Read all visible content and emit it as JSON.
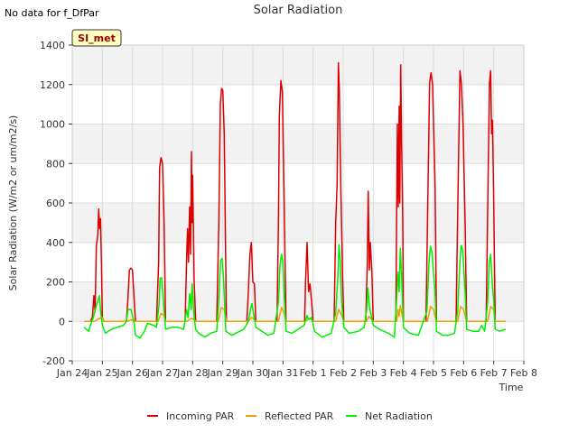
{
  "no_data_text": "No data for f_DfPar",
  "station_badge": "SI_met",
  "chart_data": {
    "type": "line",
    "title": "Solar Radiation",
    "xlabel": "Time",
    "ylabel": "Solar Radiation (W/m2 or um/m2/s)",
    "ylim": [
      -200,
      1400
    ],
    "yticks": [
      -200,
      0,
      200,
      400,
      600,
      800,
      1000,
      1200,
      1400
    ],
    "xlim": [
      0,
      15
    ],
    "xticks": [
      0,
      1,
      2,
      3,
      4,
      5,
      6,
      7,
      8,
      9,
      10,
      11,
      12,
      13,
      14,
      15
    ],
    "xtick_labels": [
      "Jan 24",
      "Jan 25",
      "Jan 26",
      "Jan 27",
      "Jan 28",
      "Jan 29",
      "Jan 30",
      "Jan 31",
      "Feb 1",
      "Feb 2",
      "Feb 3",
      "Feb 4",
      "Feb 5",
      "Feb 6",
      "Feb 7",
      "Feb 8"
    ],
    "grid": true,
    "legend_position": "bottom",
    "series": [
      {
        "name": "Incoming PAR",
        "color": "#dd0000",
        "points": [
          [
            0.4,
            0
          ],
          [
            0.6,
            0
          ],
          [
            0.67,
            20
          ],
          [
            0.72,
            130
          ],
          [
            0.76,
            50
          ],
          [
            0.8,
            380
          ],
          [
            0.85,
            440
          ],
          [
            0.88,
            570
          ],
          [
            0.91,
            470
          ],
          [
            0.94,
            520
          ],
          [
            0.97,
            300
          ],
          [
            1.0,
            20
          ],
          [
            1.05,
            0
          ],
          [
            1.8,
            0
          ],
          [
            1.85,
            120
          ],
          [
            1.9,
            260
          ],
          [
            1.95,
            270
          ],
          [
            2.0,
            260
          ],
          [
            2.05,
            130
          ],
          [
            2.1,
            0
          ],
          [
            2.8,
            0
          ],
          [
            2.87,
            300
          ],
          [
            2.9,
            780
          ],
          [
            2.95,
            830
          ],
          [
            3.0,
            800
          ],
          [
            3.05,
            500
          ],
          [
            3.1,
            0
          ],
          [
            3.75,
            0
          ],
          [
            3.8,
            330
          ],
          [
            3.83,
            470
          ],
          [
            3.86,
            300
          ],
          [
            3.9,
            580
          ],
          [
            3.93,
            340
          ],
          [
            3.96,
            860
          ],
          [
            3.98,
            500
          ],
          [
            4.0,
            740
          ],
          [
            4.05,
            200
          ],
          [
            4.1,
            0
          ],
          [
            4.8,
            0
          ],
          [
            4.87,
            500
          ],
          [
            4.92,
            1100
          ],
          [
            4.96,
            1180
          ],
          [
            5.0,
            1170
          ],
          [
            5.05,
            950
          ],
          [
            5.12,
            0
          ],
          [
            5.8,
            0
          ],
          [
            5.85,
            150
          ],
          [
            5.9,
            340
          ],
          [
            5.95,
            400
          ],
          [
            6.0,
            200
          ],
          [
            6.05,
            190
          ],
          [
            6.1,
            0
          ],
          [
            6.8,
            0
          ],
          [
            6.85,
            500
          ],
          [
            6.88,
            1040
          ],
          [
            6.93,
            1220
          ],
          [
            6.98,
            1160
          ],
          [
            7.03,
            700
          ],
          [
            7.1,
            0
          ],
          [
            7.72,
            0
          ],
          [
            7.75,
            200
          ],
          [
            7.8,
            400
          ],
          [
            7.85,
            150
          ],
          [
            7.9,
            190
          ],
          [
            7.95,
            100
          ],
          [
            8.0,
            0
          ],
          [
            8.7,
            0
          ],
          [
            8.75,
            500
          ],
          [
            8.8,
            700
          ],
          [
            8.84,
            1310
          ],
          [
            8.87,
            1180
          ],
          [
            8.92,
            700
          ],
          [
            8.98,
            240
          ],
          [
            9.02,
            0
          ],
          [
            9.75,
            0
          ],
          [
            9.8,
            300
          ],
          [
            9.83,
            660
          ],
          [
            9.87,
            260
          ],
          [
            9.9,
            400
          ],
          [
            9.95,
            260
          ],
          [
            10.0,
            0
          ],
          [
            10.75,
            0
          ],
          [
            10.78,
            600
          ],
          [
            10.8,
            1000
          ],
          [
            10.83,
            580
          ],
          [
            10.86,
            1090
          ],
          [
            10.88,
            600
          ],
          [
            10.91,
            1300
          ],
          [
            10.94,
            900
          ],
          [
            10.98,
            500
          ],
          [
            11.0,
            0
          ],
          [
            11.75,
            0
          ],
          [
            11.82,
            700
          ],
          [
            11.87,
            1210
          ],
          [
            11.92,
            1260
          ],
          [
            11.97,
            1200
          ],
          [
            12.05,
            700
          ],
          [
            12.1,
            0
          ],
          [
            12.75,
            0
          ],
          [
            12.82,
            700
          ],
          [
            12.88,
            1270
          ],
          [
            12.93,
            1200
          ],
          [
            12.98,
            1000
          ],
          [
            13.05,
            500
          ],
          [
            13.1,
            0
          ],
          [
            13.75,
            0
          ],
          [
            13.82,
            800
          ],
          [
            13.86,
            1210
          ],
          [
            13.9,
            1270
          ],
          [
            13.93,
            950
          ],
          [
            13.96,
            1020
          ],
          [
            14.0,
            600
          ],
          [
            14.05,
            0
          ],
          [
            14.4,
            0
          ]
        ]
      },
      {
        "name": "Reflected PAR",
        "color": "#f0a000",
        "points": [
          [
            0.4,
            0
          ],
          [
            0.75,
            0
          ],
          [
            0.9,
            15
          ],
          [
            1.0,
            20
          ],
          [
            1.05,
            0
          ],
          [
            1.85,
            0
          ],
          [
            1.95,
            10
          ],
          [
            2.05,
            0
          ],
          [
            2.85,
            0
          ],
          [
            2.95,
            40
          ],
          [
            3.05,
            30
          ],
          [
            3.1,
            0
          ],
          [
            3.8,
            0
          ],
          [
            3.95,
            15
          ],
          [
            4.05,
            10
          ],
          [
            4.1,
            0
          ],
          [
            4.85,
            0
          ],
          [
            4.95,
            70
          ],
          [
            5.05,
            60
          ],
          [
            5.12,
            0
          ],
          [
            5.85,
            0
          ],
          [
            5.95,
            20
          ],
          [
            6.05,
            10
          ],
          [
            6.1,
            0
          ],
          [
            6.85,
            0
          ],
          [
            6.95,
            70
          ],
          [
            7.05,
            40
          ],
          [
            7.1,
            0
          ],
          [
            7.75,
            0
          ],
          [
            7.85,
            15
          ],
          [
            7.95,
            10
          ],
          [
            8.0,
            0
          ],
          [
            8.75,
            0
          ],
          [
            8.85,
            60
          ],
          [
            8.95,
            30
          ],
          [
            9.02,
            0
          ],
          [
            9.78,
            0
          ],
          [
            9.85,
            25
          ],
          [
            9.95,
            10
          ],
          [
            10.0,
            0
          ],
          [
            10.78,
            0
          ],
          [
            10.82,
            60
          ],
          [
            10.86,
            25
          ],
          [
            10.9,
            80
          ],
          [
            10.95,
            40
          ],
          [
            11.0,
            0
          ],
          [
            11.8,
            0
          ],
          [
            11.9,
            75
          ],
          [
            12.0,
            60
          ],
          [
            12.1,
            0
          ],
          [
            12.8,
            0
          ],
          [
            12.9,
            75
          ],
          [
            13.0,
            60
          ],
          [
            13.1,
            0
          ],
          [
            13.8,
            0
          ],
          [
            13.9,
            75
          ],
          [
            14.0,
            60
          ],
          [
            14.05,
            0
          ],
          [
            14.4,
            0
          ]
        ]
      },
      {
        "name": "Net Radiation",
        "color": "#00ee00",
        "points": [
          [
            0.4,
            -30
          ],
          [
            0.5,
            -45
          ],
          [
            0.55,
            -50
          ],
          [
            0.6,
            -20
          ],
          [
            0.7,
            20
          ],
          [
            0.8,
            80
          ],
          [
            0.86,
            110
          ],
          [
            0.9,
            130
          ],
          [
            0.94,
            60
          ],
          [
            1.0,
            -20
          ],
          [
            1.1,
            -60
          ],
          [
            1.3,
            -40
          ],
          [
            1.5,
            -30
          ],
          [
            1.7,
            -20
          ],
          [
            1.8,
            0
          ],
          [
            1.85,
            60
          ],
          [
            1.95,
            60
          ],
          [
            2.05,
            0
          ],
          [
            2.1,
            -70
          ],
          [
            2.25,
            -85
          ],
          [
            2.4,
            -50
          ],
          [
            2.5,
            -10
          ],
          [
            2.7,
            -20
          ],
          [
            2.8,
            -30
          ],
          [
            2.88,
            80
          ],
          [
            2.92,
            220
          ],
          [
            2.97,
            220
          ],
          [
            3.03,
            100
          ],
          [
            3.1,
            -40
          ],
          [
            3.3,
            -30
          ],
          [
            3.5,
            -30
          ],
          [
            3.7,
            -40
          ],
          [
            3.8,
            60
          ],
          [
            3.85,
            20
          ],
          [
            3.9,
            140
          ],
          [
            3.95,
            60
          ],
          [
            3.98,
            190
          ],
          [
            4.05,
            20
          ],
          [
            4.1,
            -40
          ],
          [
            4.2,
            -60
          ],
          [
            4.4,
            -80
          ],
          [
            4.6,
            -60
          ],
          [
            4.8,
            -50
          ],
          [
            4.88,
            150
          ],
          [
            4.93,
            310
          ],
          [
            4.98,
            320
          ],
          [
            5.03,
            200
          ],
          [
            5.1,
            -50
          ],
          [
            5.3,
            -70
          ],
          [
            5.5,
            -55
          ],
          [
            5.7,
            -40
          ],
          [
            5.85,
            0
          ],
          [
            5.92,
            60
          ],
          [
            5.97,
            90
          ],
          [
            6.02,
            40
          ],
          [
            6.1,
            -30
          ],
          [
            6.3,
            -50
          ],
          [
            6.5,
            -70
          ],
          [
            6.7,
            -60
          ],
          [
            6.85,
            100
          ],
          [
            6.9,
            280
          ],
          [
            6.95,
            340
          ],
          [
            7.0,
            300
          ],
          [
            7.05,
            100
          ],
          [
            7.1,
            -50
          ],
          [
            7.3,
            -60
          ],
          [
            7.5,
            -40
          ],
          [
            7.7,
            -20
          ],
          [
            7.8,
            30
          ],
          [
            7.85,
            10
          ],
          [
            7.95,
            20
          ],
          [
            8.05,
            -50
          ],
          [
            8.3,
            -80
          ],
          [
            8.6,
            -60
          ],
          [
            8.75,
            40
          ],
          [
            8.82,
            220
          ],
          [
            8.86,
            390
          ],
          [
            8.9,
            310
          ],
          [
            8.95,
            100
          ],
          [
            9.02,
            -30
          ],
          [
            9.2,
            -60
          ],
          [
            9.5,
            -50
          ],
          [
            9.7,
            -30
          ],
          [
            9.78,
            60
          ],
          [
            9.82,
            170
          ],
          [
            9.87,
            80
          ],
          [
            9.93,
            30
          ],
          [
            10.0,
            -20
          ],
          [
            10.2,
            -40
          ],
          [
            10.5,
            -60
          ],
          [
            10.7,
            -80
          ],
          [
            10.78,
            120
          ],
          [
            10.82,
            250
          ],
          [
            10.86,
            150
          ],
          [
            10.9,
            370
          ],
          [
            10.95,
            200
          ],
          [
            11.0,
            -30
          ],
          [
            11.2,
            -60
          ],
          [
            11.5,
            -70
          ],
          [
            11.78,
            50
          ],
          [
            11.85,
            300
          ],
          [
            11.9,
            380
          ],
          [
            11.95,
            350
          ],
          [
            12.05,
            150
          ],
          [
            12.1,
            -50
          ],
          [
            12.3,
            -70
          ],
          [
            12.5,
            -70
          ],
          [
            12.7,
            -60
          ],
          [
            12.8,
            50
          ],
          [
            12.88,
            300
          ],
          [
            12.92,
            385
          ],
          [
            12.97,
            360
          ],
          [
            13.05,
            150
          ],
          [
            13.1,
            -40
          ],
          [
            13.3,
            -50
          ],
          [
            13.5,
            -50
          ],
          [
            13.6,
            -20
          ],
          [
            13.7,
            -50
          ],
          [
            13.8,
            100
          ],
          [
            13.85,
            300
          ],
          [
            13.9,
            340
          ],
          [
            13.95,
            200
          ],
          [
            14.0,
            100
          ],
          [
            14.05,
            -40
          ],
          [
            14.2,
            -50
          ],
          [
            14.4,
            -40
          ]
        ]
      }
    ]
  }
}
